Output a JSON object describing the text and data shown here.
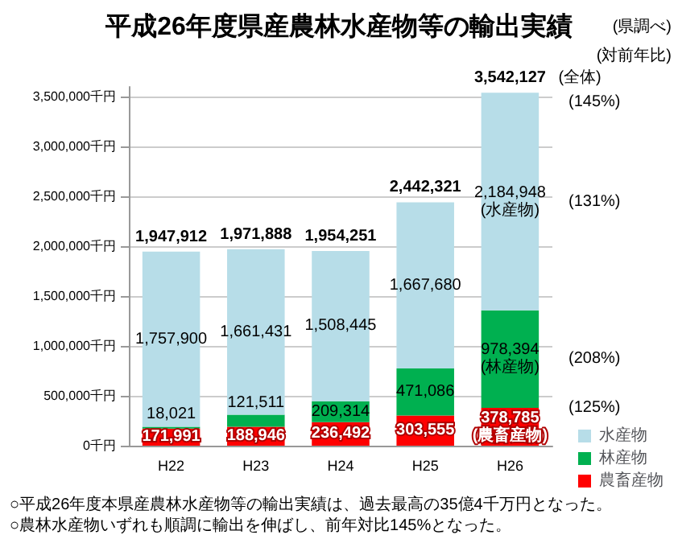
{
  "chart_data": {
    "type": "bar",
    "stacked": true,
    "title": "平成26年度県産農林水産物等の輸出実績",
    "categories": [
      "H22",
      "H23",
      "H24",
      "H25",
      "H26"
    ],
    "series": [
      {
        "name": "農畜産物",
        "color": "#ff0000",
        "values": [
          171991,
          188946,
          236492,
          303555,
          378785
        ],
        "value_labels": [
          "171,991",
          "188,946",
          "236,492",
          "303,555",
          "378,785\n(農畜産物)"
        ]
      },
      {
        "name": "林産物",
        "color": "#00b050",
        "values": [
          18021,
          121511,
          209314,
          471086,
          978394
        ],
        "value_labels": [
          "18,021",
          "121,511",
          "209,314",
          "471,086",
          "978,394\n(林産物)"
        ]
      },
      {
        "name": "水産物",
        "color": "#b7dde8",
        "values": [
          1757900,
          1661431,
          1508445,
          1667680,
          2184948
        ],
        "value_labels": [
          "1,757,900",
          "1,661,431",
          "1,508,445",
          "1,667,680",
          "2,184,948\n(水産物)"
        ]
      }
    ],
    "totals": [
      "1,947,912",
      "1,971,888",
      "1,954,251",
      "2,442,321",
      "3,542,127"
    ],
    "ylim": [
      0,
      3600000
    ],
    "yticks": [
      {
        "value": 0,
        "label": "0千円"
      },
      {
        "value": 500000,
        "label": "500,000千円"
      },
      {
        "value": 1000000,
        "label": "1,000,000千円"
      },
      {
        "value": 1500000,
        "label": "1,500,000千円"
      },
      {
        "value": 2000000,
        "label": "2,000,000千円"
      },
      {
        "value": 2500000,
        "label": "2,500,000千円"
      },
      {
        "value": 3000000,
        "label": "3,000,000千円"
      },
      {
        "value": 3500000,
        "label": "3,500,000千円"
      }
    ],
    "grid": "y",
    "legend": "bottom right",
    "annotations": [
      "(県調べ)",
      "(対前年比)",
      "(全体)",
      "(145%)",
      "(131%)",
      "(208%)",
      "(125%)",
      "○平成26年度本県産農林水産物等の輸出実績は、過去最高の35億4千万円となった。",
      "○農林水産物いずれも順調に輸出を伸ばし、前年対比145%となった。"
    ]
  }
}
